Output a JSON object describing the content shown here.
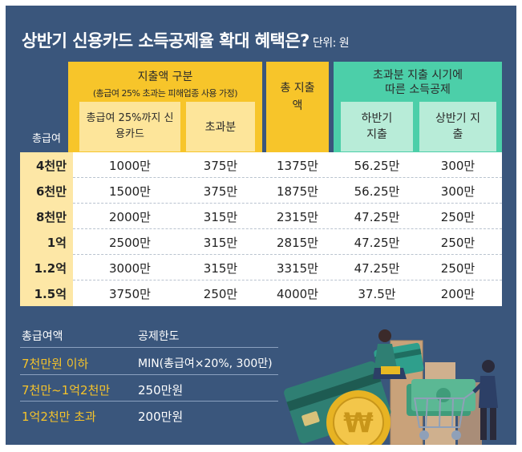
{
  "title": {
    "main": "상반기 신용카드 소득공제율 확대 혜택은?",
    "unit": "단위: 원"
  },
  "header": {
    "row_label": "총급여",
    "group1": {
      "title": "지출액 구분",
      "subtitle": "(총급여 25% 초과는 피해업종 사용 가정)"
    },
    "col1": "총급여 25%까지 신용카드",
    "col2": "초과분",
    "col3": "총 지출액",
    "group2": {
      "title": "초과분 지출 시기에 따른 소득공제"
    },
    "col4": "하반기 지출",
    "col5": "상반기 지출"
  },
  "rows": [
    {
      "label": "4천만",
      "c1": "1000만",
      "c2": "375만",
      "c3": "1375만",
      "c4": "56.25만",
      "c5": "300만"
    },
    {
      "label": "6천만",
      "c1": "1500만",
      "c2": "375만",
      "c3": "1875만",
      "c4": "56.25만",
      "c5": "300만"
    },
    {
      "label": "8천만",
      "c1": "2000만",
      "c2": "315만",
      "c3": "2315만",
      "c4": "47.25만",
      "c5": "250만"
    },
    {
      "label": "1억",
      "c1": "2500만",
      "c2": "315만",
      "c3": "2815만",
      "c4": "47.25만",
      "c5": "250만"
    },
    {
      "label": "1.2억",
      "c1": "3000만",
      "c2": "315만",
      "c3": "3315만",
      "c4": "47.25만",
      "c5": "250만"
    },
    {
      "label": "1.5억",
      "c1": "3750만",
      "c2": "250만",
      "c3": "4000만",
      "c4": "37.5만",
      "c5": "200만"
    }
  ],
  "limits": {
    "head_income": "총급여액",
    "head_limit": "공제한도",
    "items": [
      {
        "income": "7천만원 이하",
        "limit": "MIN(총급여×20%, 300만)"
      },
      {
        "income": "7천만~1억2천만",
        "limit": "250만원"
      },
      {
        "income": "1억2천만 초과",
        "limit": "200만원"
      }
    ]
  },
  "colors": {
    "background": "#3a567c",
    "yellow": "#f7c52a",
    "green": "#4ccfa9",
    "accent_text": "#f5c32a"
  },
  "illustration": {
    "icons": [
      "credit-card-icon",
      "won-coin-icon",
      "money-stack-icon",
      "shopping-cart-icon",
      "person-icon"
    ]
  }
}
